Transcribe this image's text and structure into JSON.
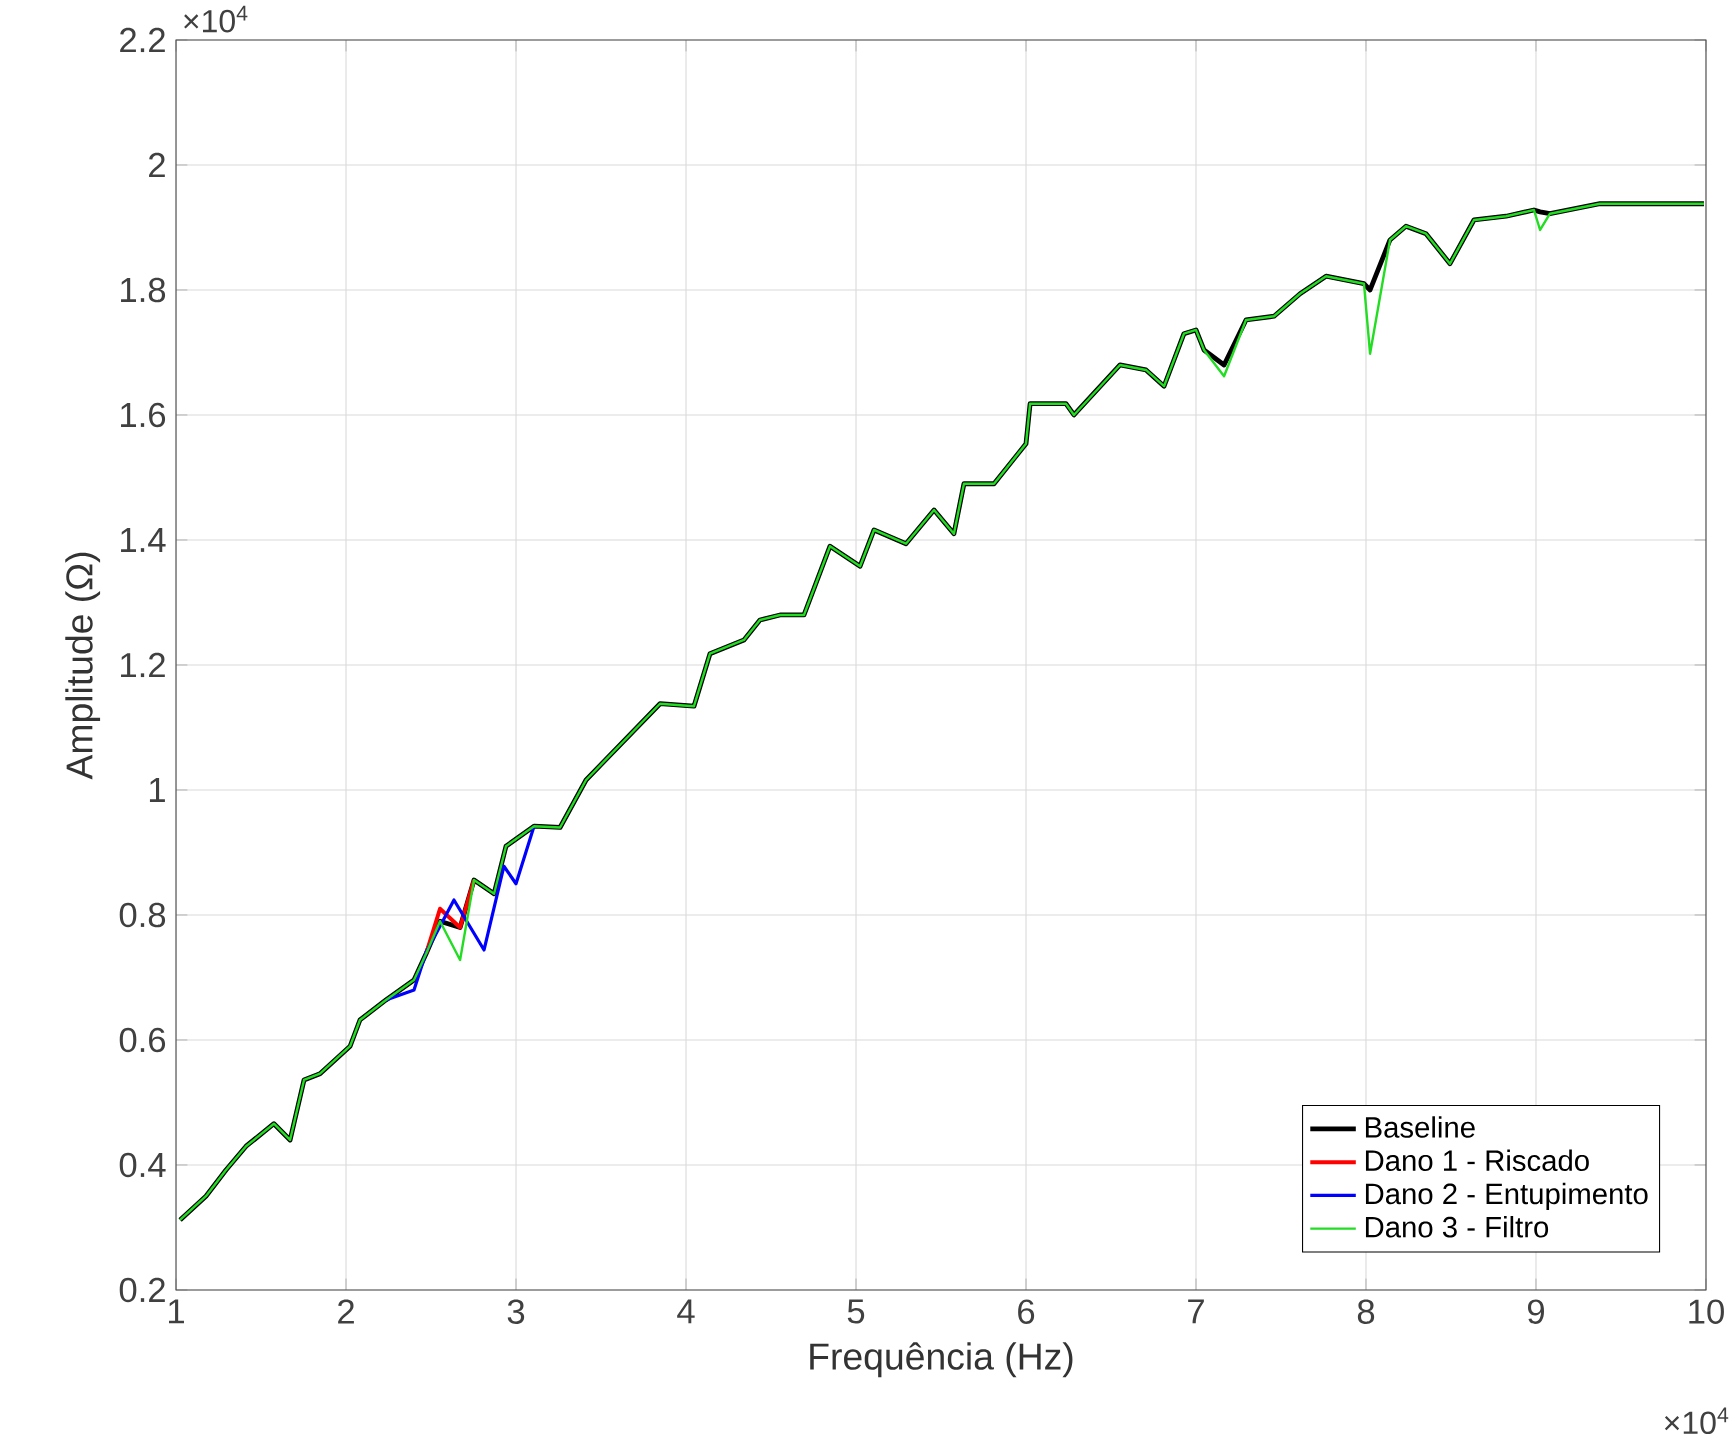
{
  "chart_data": {
    "type": "line",
    "xlabel": "Frequência (Hz)",
    "ylabel": "Amplitude (Ω)",
    "xlim": [
      1,
      10
    ],
    "ylim": [
      0.2,
      2.2
    ],
    "xticks": [
      1,
      2,
      3,
      4,
      5,
      6,
      7,
      8,
      9,
      10
    ],
    "yticks": [
      0.2,
      0.4,
      0.6,
      0.8,
      1,
      1.2,
      1.4,
      1.6,
      1.8,
      2,
      2.2
    ],
    "grid": true,
    "legend": "bottom right",
    "marker": "none",
    "line_style": "solid",
    "annotations": [
      "×10$^{4}$",
      "×10$^{4}$"
    ],
    "series": [
      {
        "name": "Baseline",
        "color": "#000000",
        "x": [
          1.024,
          1.176,
          1.294,
          1.412,
          1.576,
          1.671,
          1.753,
          1.847,
          2.024,
          2.082,
          2.235,
          2.4,
          2.471,
          2.553,
          2.671,
          2.753,
          2.871,
          2.941,
          3.106,
          3.259,
          3.412,
          3.847,
          4.047,
          4.141,
          4.341,
          4.435,
          4.553,
          4.694,
          4.847,
          5.024,
          5.106,
          5.294,
          5.459,
          5.576,
          5.635,
          5.812,
          6.0,
          6.024,
          6.235,
          6.282,
          6.553,
          6.706,
          6.812,
          6.929,
          7.0,
          7.047,
          7.165,
          7.294,
          7.459,
          7.612,
          7.765,
          7.988,
          8.024,
          8.141,
          8.235,
          8.353,
          8.494,
          8.635,
          8.824,
          8.988,
          9.024,
          9.082,
          9.376,
          9.694,
          9.988
        ],
        "values": [
          0.312,
          0.35,
          0.392,
          0.43,
          0.466,
          0.44,
          0.536,
          0.546,
          0.59,
          0.632,
          0.664,
          0.696,
          0.738,
          0.79,
          0.78,
          0.856,
          0.834,
          0.91,
          0.942,
          0.94,
          1.016,
          1.138,
          1.134,
          1.218,
          1.24,
          1.272,
          1.28,
          1.28,
          1.39,
          1.358,
          1.416,
          1.394,
          1.448,
          1.41,
          1.49,
          1.49,
          1.554,
          1.618,
          1.618,
          1.6,
          1.68,
          1.672,
          1.646,
          1.73,
          1.736,
          1.704,
          1.68,
          1.752,
          1.758,
          1.794,
          1.822,
          1.81,
          1.8,
          1.88,
          1.902,
          1.89,
          1.842,
          1.912,
          1.918,
          1.928,
          1.925,
          1.922,
          1.938,
          1.938,
          1.938
        ]
      },
      {
        "name": "Dano 1 - Riscado",
        "color": "#ff0000",
        "x": [
          2.471,
          2.553,
          2.671,
          2.753
        ],
        "values": [
          0.738,
          0.81,
          0.78,
          0.856
        ]
      },
      {
        "name": "Dano 2 - Entupimento",
        "color": "#0000ff",
        "x": [
          2.235,
          2.4,
          2.471,
          2.635,
          2.812,
          2.929,
          3.0,
          3.106
        ],
        "values": [
          0.664,
          0.68,
          0.74,
          0.824,
          0.744,
          0.878,
          0.85,
          0.942
        ]
      },
      {
        "name": "Dano 3 - Filtro",
        "color": "#22dd22",
        "x": [
          1.024,
          1.176,
          1.294,
          1.412,
          1.576,
          1.671,
          1.753,
          1.847,
          2.024,
          2.082,
          2.235,
          2.4,
          2.471,
          2.553,
          2.671,
          2.753,
          2.871,
          2.941,
          3.106,
          3.259,
          3.412,
          3.847,
          4.047,
          4.141,
          4.341,
          4.435,
          4.553,
          4.694,
          4.847,
          5.024,
          5.106,
          5.294,
          5.459,
          5.576,
          5.635,
          5.812,
          6.0,
          6.024,
          6.235,
          6.282,
          6.553,
          6.706,
          6.812,
          6.929,
          7.0,
          7.047,
          7.165,
          7.294,
          7.459,
          7.612,
          7.765,
          7.988,
          8.024,
          8.141,
          8.235,
          8.353,
          8.494,
          8.635,
          8.824,
          8.988,
          9.024,
          9.082,
          9.376,
          9.694,
          9.988
        ],
        "values": [
          0.312,
          0.35,
          0.392,
          0.43,
          0.466,
          0.44,
          0.536,
          0.546,
          0.59,
          0.632,
          0.664,
          0.696,
          0.738,
          0.79,
          0.728,
          0.856,
          0.834,
          0.91,
          0.942,
          0.94,
          1.016,
          1.138,
          1.134,
          1.218,
          1.24,
          1.272,
          1.28,
          1.28,
          1.39,
          1.358,
          1.416,
          1.394,
          1.448,
          1.41,
          1.49,
          1.49,
          1.554,
          1.618,
          1.618,
          1.6,
          1.68,
          1.672,
          1.646,
          1.73,
          1.736,
          1.704,
          1.662,
          1.752,
          1.758,
          1.794,
          1.822,
          1.81,
          1.698,
          1.88,
          1.902,
          1.89,
          1.842,
          1.912,
          1.918,
          1.928,
          1.896,
          1.922,
          1.938,
          1.938,
          1.938
        ]
      }
    ]
  }
}
